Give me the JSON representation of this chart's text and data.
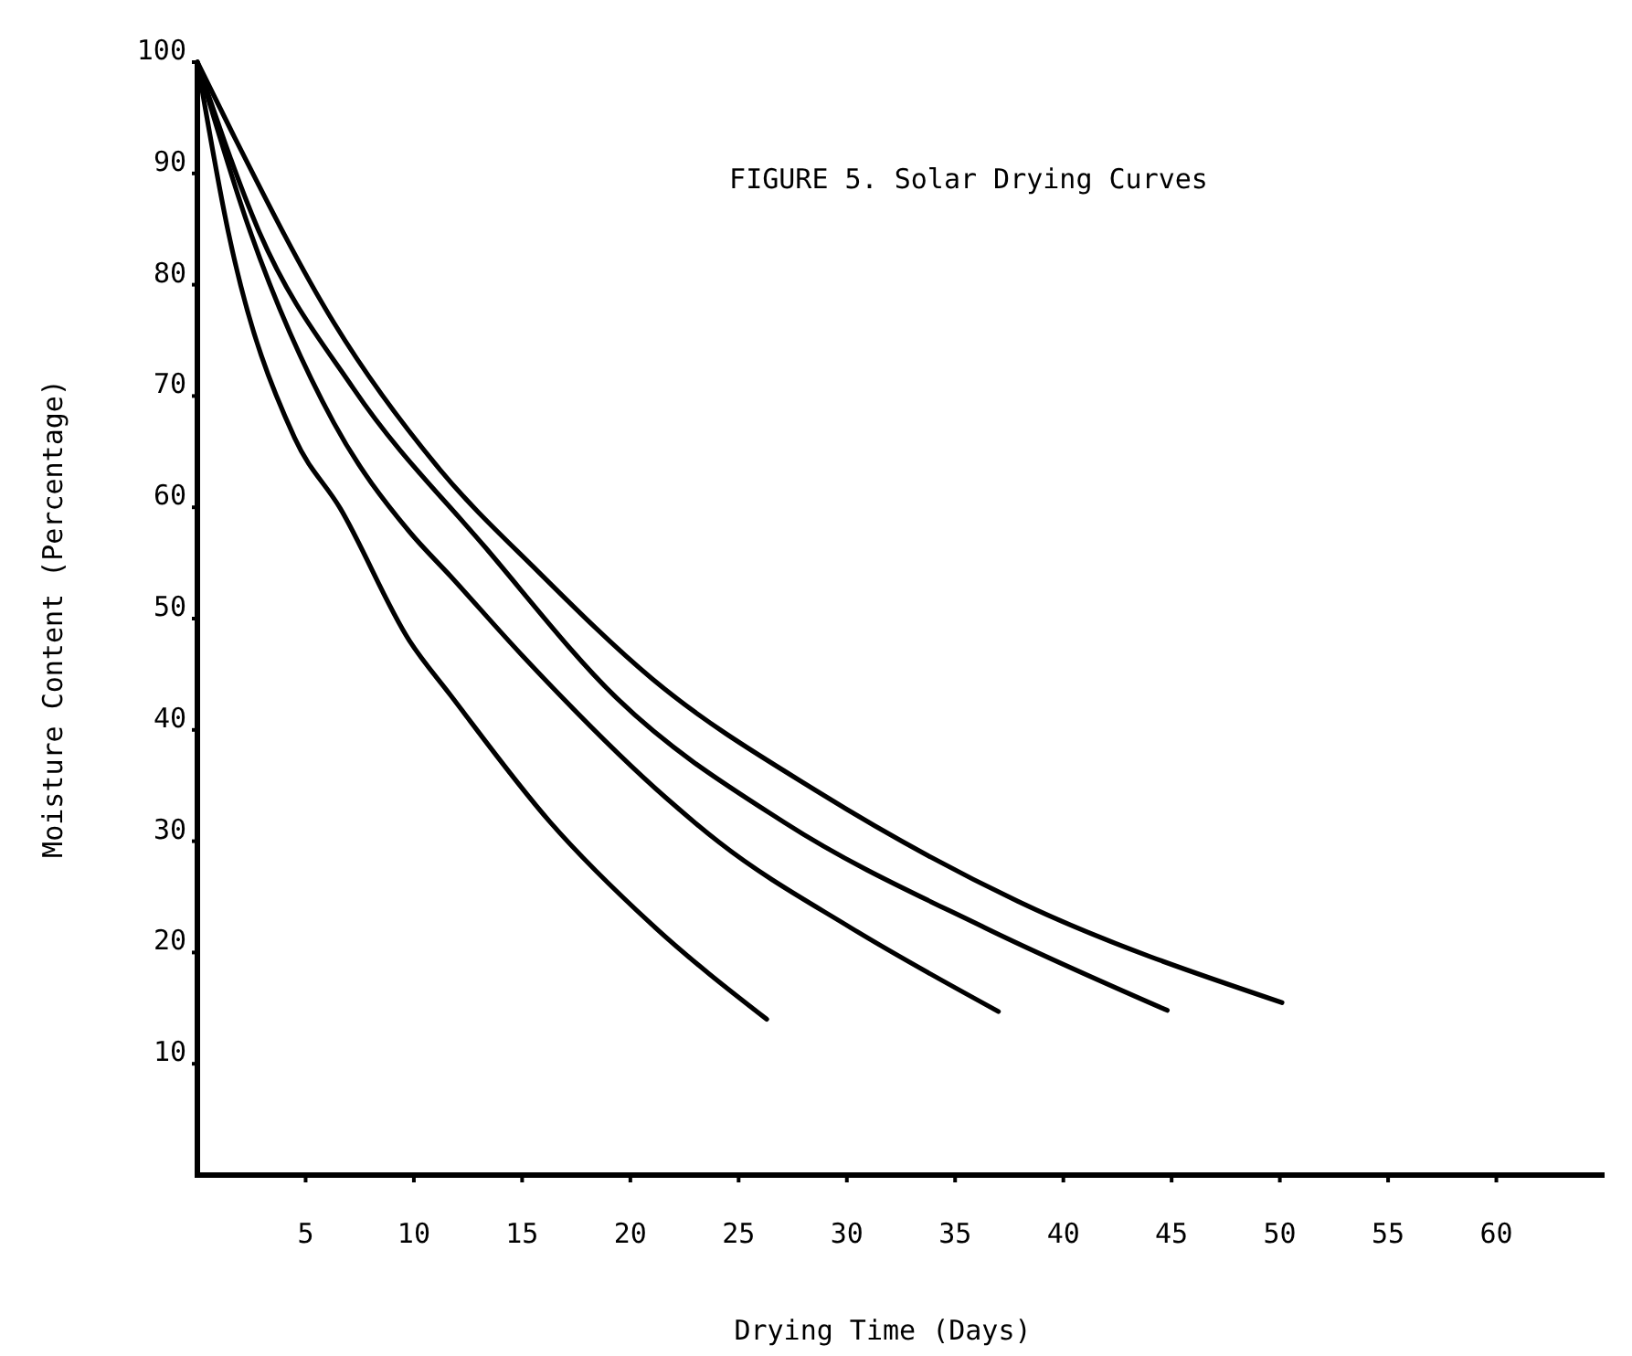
{
  "chart_data": {
    "type": "line",
    "title": "FIGURE 5.  Solar Drying Curves",
    "xlabel": "Drying Time (Days)",
    "ylabel": "Moisture Content (Percentage)",
    "xlim": [
      0,
      65
    ],
    "ylim": [
      0,
      100
    ],
    "xticks": [
      5,
      10,
      15,
      20,
      25,
      30,
      35,
      40,
      45,
      50,
      55,
      60
    ],
    "yticks": [
      10,
      20,
      30,
      40,
      50,
      60,
      70,
      80,
      90,
      100
    ],
    "series": [
      {
        "color": "#000000",
        "x": [
          0,
          1.4,
          4.5,
          6.6,
          9.8,
          11.7,
          16.3,
          21,
          26.3
        ],
        "values": [
          100,
          85,
          66.2,
          59.9,
          48,
          43.1,
          31.7,
          22.5,
          14
        ]
      },
      {
        "color": "#000000",
        "x": [
          0,
          2.4,
          6.3,
          9.8,
          11.7,
          15,
          21.7,
          24.1,
          30.2,
          37
        ],
        "values": [
          100,
          85,
          67.6,
          57.8,
          53.8,
          46.7,
          33.8,
          29.9,
          22.2,
          14.7
        ]
      },
      {
        "color": "#000000",
        "x": [
          0,
          2.8,
          7.2,
          13.3,
          19.4,
          27.1,
          36.4,
          44.8
        ],
        "values": [
          100,
          85,
          70.7,
          56.4,
          42.8,
          31.7,
          22.2,
          14.8
        ]
      },
      {
        "color": "#000000",
        "x": [
          0,
          1.6,
          6.3,
          11.2,
          15.7,
          21,
          28.7,
          37.9,
          50.1
        ],
        "values": [
          100,
          93.7,
          76.6,
          63.4,
          54.3,
          44.6,
          34.4,
          24.6,
          15.5
        ]
      }
    ]
  }
}
